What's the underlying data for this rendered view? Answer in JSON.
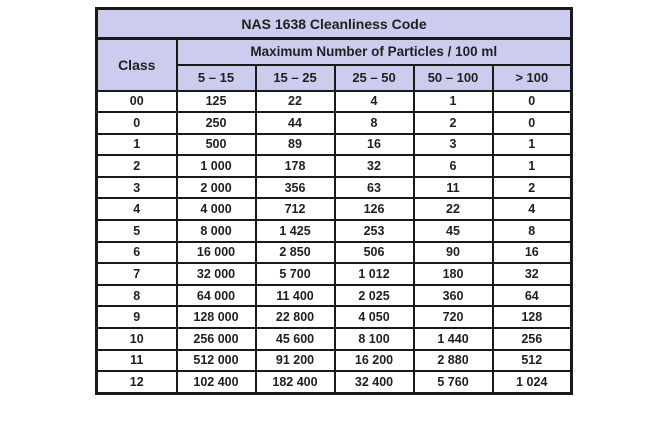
{
  "table": {
    "title": "NAS 1638 Cleanliness Code",
    "class_header": "Class",
    "particles_header": "Maximum Number of Particles / 100 ml",
    "size_ranges": [
      "5 – 15",
      "15 – 25",
      "25 – 50",
      "50 – 100",
      "> 100"
    ],
    "rows": [
      {
        "class": "00",
        "values": [
          "125",
          "22",
          "4",
          "1",
          "0"
        ]
      },
      {
        "class": "0",
        "values": [
          "250",
          "44",
          "8",
          "2",
          "0"
        ]
      },
      {
        "class": "1",
        "values": [
          "500",
          "89",
          "16",
          "3",
          "1"
        ]
      },
      {
        "class": "2",
        "values": [
          "1 000",
          "178",
          "32",
          "6",
          "1"
        ]
      },
      {
        "class": "3",
        "values": [
          "2 000",
          "356",
          "63",
          "11",
          "2"
        ]
      },
      {
        "class": "4",
        "values": [
          "4 000",
          "712",
          "126",
          "22",
          "4"
        ]
      },
      {
        "class": "5",
        "values": [
          "8 000",
          "1 425",
          "253",
          "45",
          "8"
        ]
      },
      {
        "class": "6",
        "values": [
          "16 000",
          "2 850",
          "506",
          "90",
          "16"
        ]
      },
      {
        "class": "7",
        "values": [
          "32 000",
          "5 700",
          "1 012",
          "180",
          "32"
        ]
      },
      {
        "class": "8",
        "values": [
          "64 000",
          "11 400",
          "2 025",
          "360",
          "64"
        ]
      },
      {
        "class": "9",
        "values": [
          "128 000",
          "22 800",
          "4 050",
          "720",
          "128"
        ]
      },
      {
        "class": "10",
        "values": [
          "256 000",
          "45 600",
          "8 100",
          "1 440",
          "256"
        ]
      },
      {
        "class": "11",
        "values": [
          "512 000",
          "91 200",
          "16 200",
          "2 880",
          "512"
        ]
      },
      {
        "class": "12",
        "values": [
          "102 400",
          "182 400",
          "32 400",
          "5 760",
          "1 024"
        ]
      }
    ]
  },
  "chart_data": {
    "type": "table",
    "title": "NAS 1638 Cleanliness Code",
    "subtitle": "Maximum Number of Particles / 100 ml",
    "columns": [
      "Class",
      "5 – 15",
      "15 – 25",
      "25 – 50",
      "50 – 100",
      "> 100"
    ],
    "rows": [
      [
        "00",
        125,
        22,
        4,
        1,
        0
      ],
      [
        "0",
        250,
        44,
        8,
        2,
        0
      ],
      [
        "1",
        500,
        89,
        16,
        3,
        1
      ],
      [
        "2",
        1000,
        178,
        32,
        6,
        1
      ],
      [
        "3",
        2000,
        356,
        63,
        11,
        2
      ],
      [
        "4",
        4000,
        712,
        126,
        22,
        4
      ],
      [
        "5",
        8000,
        1425,
        253,
        45,
        8
      ],
      [
        "6",
        16000,
        2850,
        506,
        90,
        16
      ],
      [
        "7",
        32000,
        5700,
        1012,
        180,
        32
      ],
      [
        "8",
        64000,
        11400,
        2025,
        360,
        64
      ],
      [
        "9",
        128000,
        22800,
        4050,
        720,
        128
      ],
      [
        "10",
        256000,
        45600,
        8100,
        1440,
        256
      ],
      [
        "11",
        512000,
        91200,
        16200,
        2880,
        512
      ],
      [
        "12",
        102400,
        182400,
        32400,
        5760,
        1024
      ]
    ]
  },
  "colors": {
    "header_bg": "#ccccee",
    "border": "#1a1a1a",
    "text": "#1f1f1f",
    "page_bg": "#ffffff"
  }
}
